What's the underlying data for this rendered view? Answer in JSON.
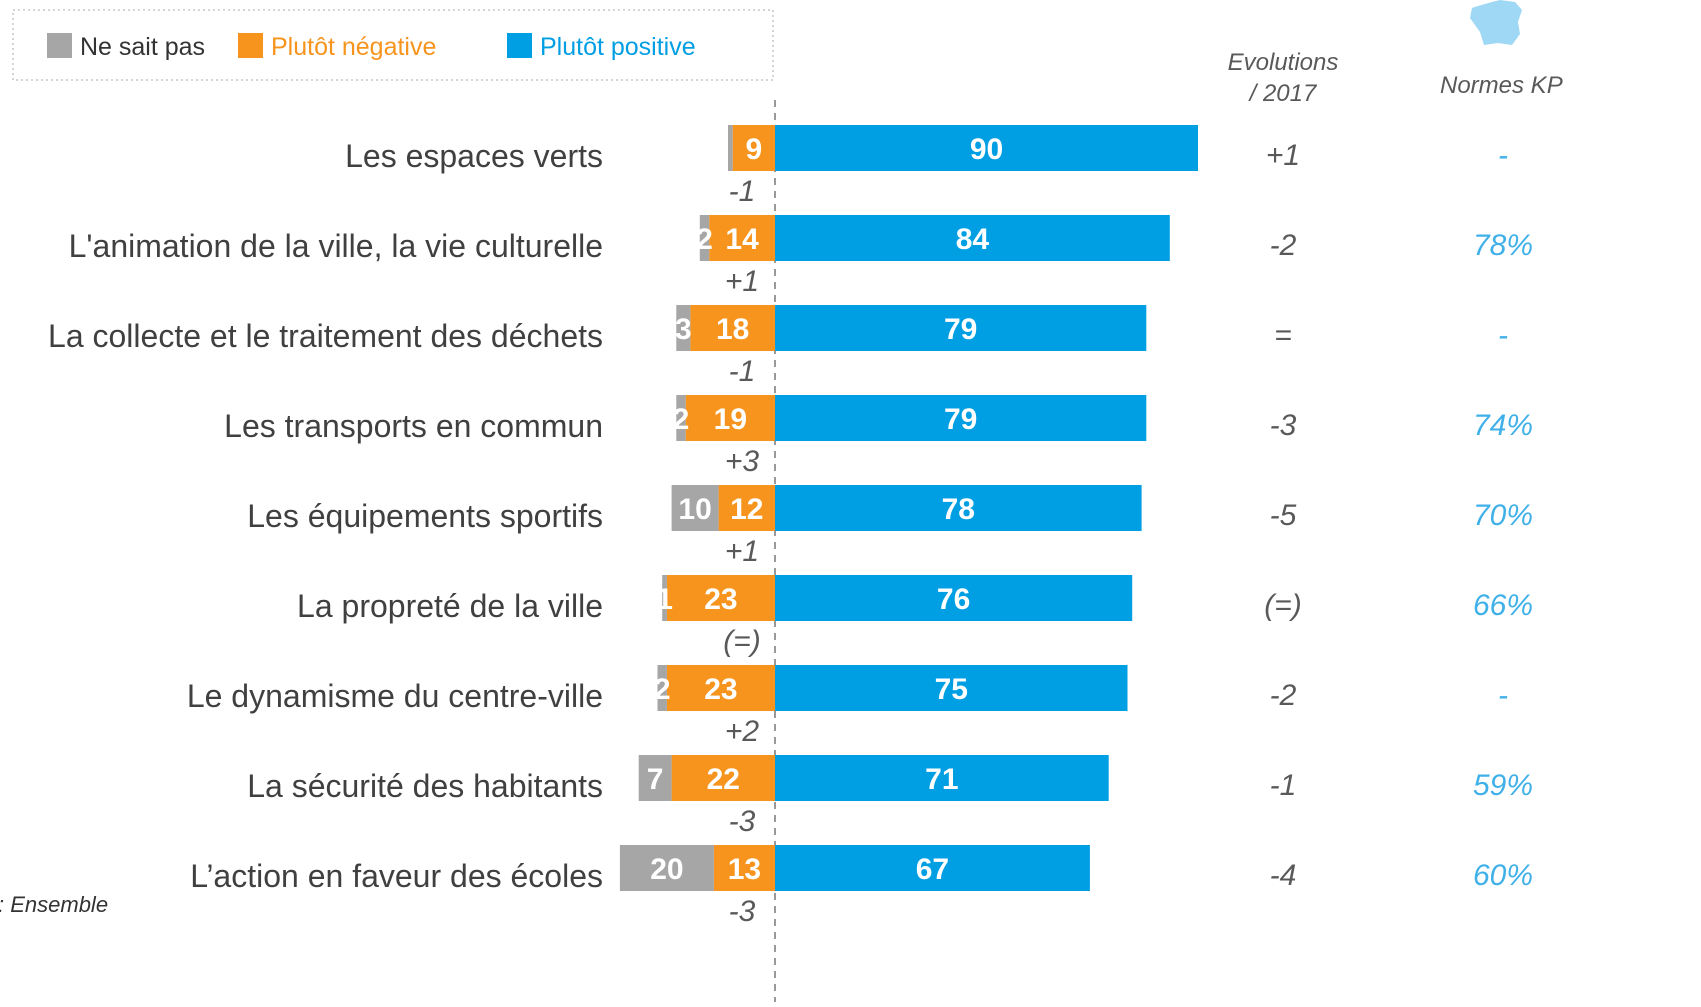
{
  "chart_data": {
    "type": "diverging_bar",
    "categories": [
      "Les espaces verts",
      "L'animation de la ville, la vie culturelle",
      "La collecte et le traitement des déchets",
      "Les transports en commun",
      "Les équipements sportifs",
      "La propreté de la ville",
      "Le dynamisme du centre-ville",
      "La sécurité des habitants",
      "L’action en faveur des écoles"
    ],
    "series": [
      {
        "name": "Ne sait pas",
        "color": "#a6a6a6",
        "side": "negative",
        "values": [
          1,
          2,
          3,
          2,
          10,
          1,
          2,
          7,
          20
        ],
        "value_labels": [
          null,
          "2",
          "3",
          "2",
          "10",
          "1",
          "2",
          "7",
          "20"
        ]
      },
      {
        "name": "Plutôt négative",
        "color": "#f7941d",
        "side": "negative",
        "values": [
          9,
          14,
          18,
          19,
          12,
          23,
          23,
          22,
          13
        ]
      },
      {
        "name": "Plutôt positive",
        "color": "#009fe3",
        "side": "positive",
        "values": [
          90,
          84,
          79,
          79,
          78,
          76,
          75,
          71,
          67
        ]
      }
    ],
    "negative_changes": [
      "-1",
      "+1",
      "-1",
      "+3",
      "+1",
      "(=)",
      "+2",
      "-3",
      "-3"
    ],
    "evolutions": {
      "title": [
        "Evolutions",
        "/ 2017"
      ],
      "values": [
        "+1",
        "-2",
        "=",
        "-3",
        "-5",
        "(=)",
        "-2",
        "-1",
        "-4"
      ]
    },
    "normes": {
      "title": "Normes KP",
      "values": [
        "-",
        "78%",
        "-",
        "74%",
        "70%",
        "66%",
        "-",
        "59%",
        "60%"
      ]
    },
    "legend": "top-left",
    "note": ": Ensemble"
  }
}
